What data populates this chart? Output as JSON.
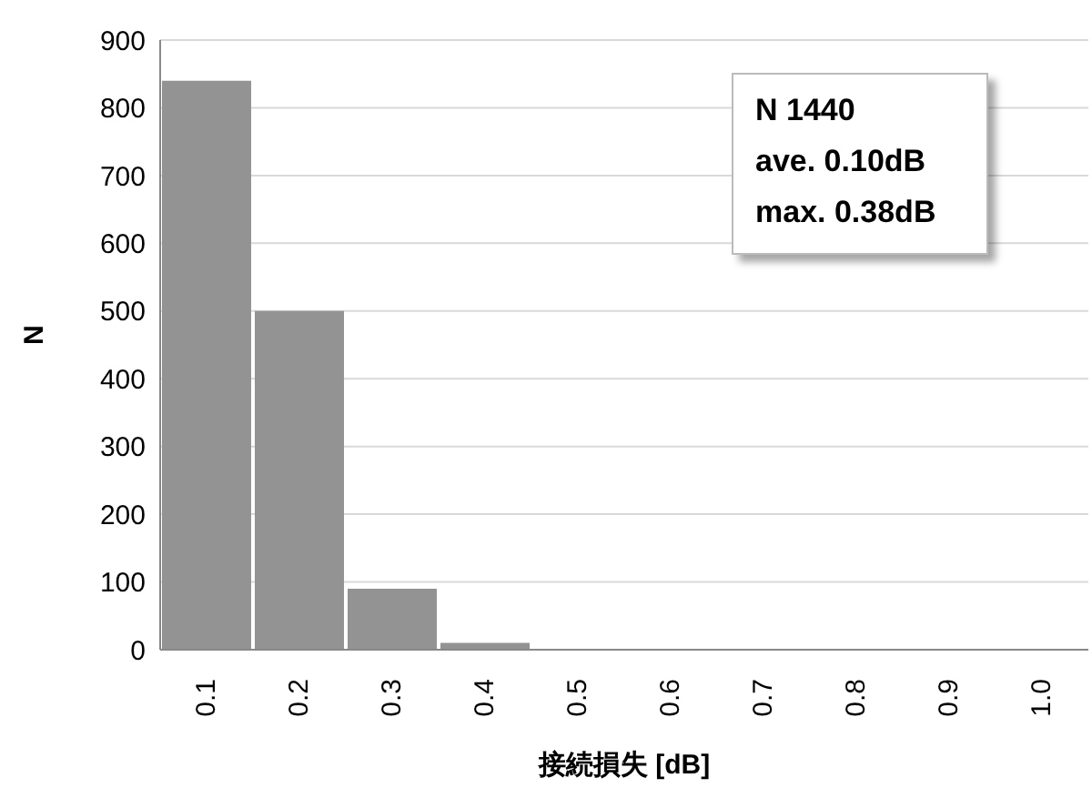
{
  "chart_data": {
    "type": "bar",
    "categories": [
      "0.1",
      "0.2",
      "0.3",
      "0.4",
      "0.5",
      "0.6",
      "0.7",
      "0.8",
      "0.9",
      "1.0"
    ],
    "values": [
      840,
      500,
      90,
      10,
      0,
      0,
      0,
      0,
      0,
      0
    ],
    "color": "#939393",
    "xlabel": "接続損失 [dB]",
    "ylabel": "N",
    "ylim": [
      0,
      900
    ],
    "yticks": [
      0,
      100,
      200,
      300,
      400,
      500,
      600,
      700,
      800,
      900
    ],
    "grid": "y",
    "annotations": [
      "N 1440",
      "ave. 0.10dB",
      "max. 0.38dB"
    ]
  }
}
